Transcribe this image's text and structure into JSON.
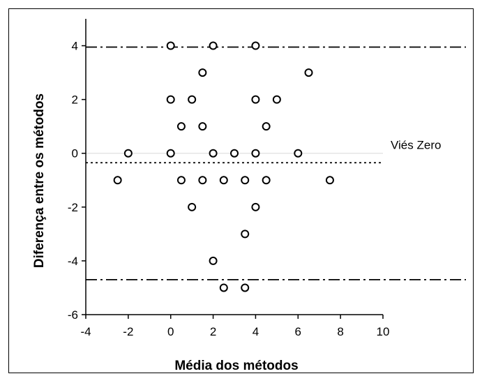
{
  "chart_data": {
    "type": "scatter",
    "xlabel": "Média dos métodos",
    "ylabel": "Diferença entre os métodos",
    "xlim": [
      -4,
      10
    ],
    "ylim": [
      -6,
      5
    ],
    "x_ticks": [
      "-4",
      "-2",
      "0",
      "2",
      "4",
      "6",
      "8",
      "10"
    ],
    "y_ticks": [
      "-6",
      "-4",
      "-2",
      "0",
      "2",
      "4"
    ],
    "grid": false,
    "reference_lines": [
      {
        "label": "Viés Zero",
        "y": 0,
        "style": "solid",
        "color": "#d9d9d9"
      },
      {
        "label": "",
        "y": -0.35,
        "style": "dotted",
        "color": "#000000"
      },
      {
        "label": "",
        "y": 3.95,
        "style": "dashdot",
        "color": "#000000"
      },
      {
        "label": "",
        "y": -4.7,
        "style": "dashdot",
        "color": "#000000"
      }
    ],
    "points": [
      {
        "x": 0,
        "y": 4
      },
      {
        "x": 2,
        "y": 4
      },
      {
        "x": 4,
        "y": 4
      },
      {
        "x": 1.5,
        "y": 3
      },
      {
        "x": 6.5,
        "y": 3
      },
      {
        "x": 0,
        "y": 2
      },
      {
        "x": 1,
        "y": 2
      },
      {
        "x": 4,
        "y": 2
      },
      {
        "x": 5,
        "y": 2
      },
      {
        "x": 0.5,
        "y": 1
      },
      {
        "x": 1.5,
        "y": 1
      },
      {
        "x": 4.5,
        "y": 1
      },
      {
        "x": -2,
        "y": 0
      },
      {
        "x": 0,
        "y": 0
      },
      {
        "x": 2,
        "y": 0
      },
      {
        "x": 3,
        "y": 0
      },
      {
        "x": 4,
        "y": 0
      },
      {
        "x": 6,
        "y": 0
      },
      {
        "x": -2.5,
        "y": -1
      },
      {
        "x": 0.5,
        "y": -1
      },
      {
        "x": 1.5,
        "y": -1
      },
      {
        "x": 2.5,
        "y": -1
      },
      {
        "x": 3.5,
        "y": -1
      },
      {
        "x": 4.5,
        "y": -1
      },
      {
        "x": 7.5,
        "y": -1
      },
      {
        "x": 1,
        "y": -2
      },
      {
        "x": 4,
        "y": -2
      },
      {
        "x": 3.5,
        "y": -3
      },
      {
        "x": 2,
        "y": -4
      },
      {
        "x": 2.5,
        "y": -5
      },
      {
        "x": 3.5,
        "y": -5
      }
    ]
  }
}
